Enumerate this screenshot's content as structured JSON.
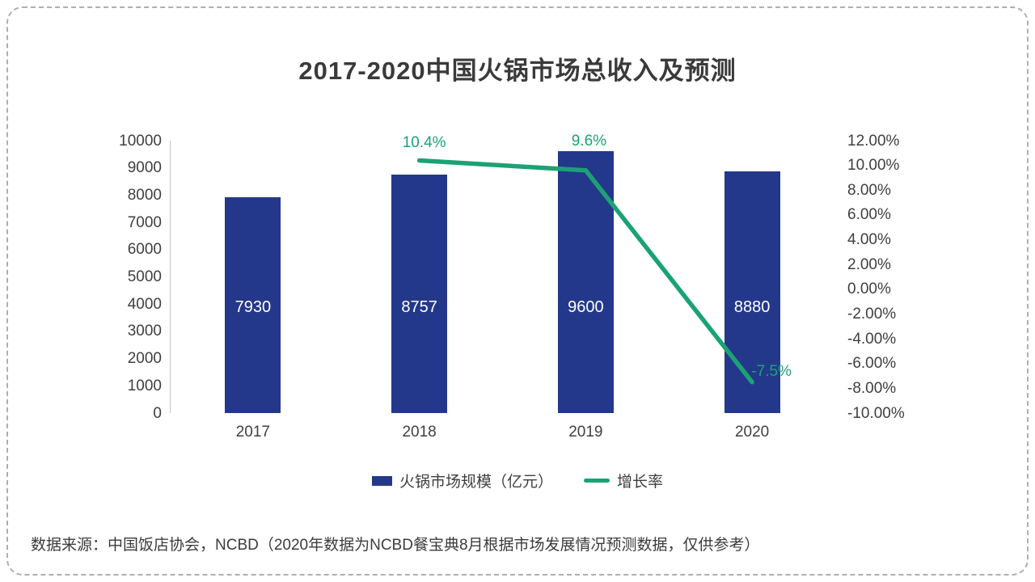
{
  "card": {
    "title": "2017-2020中国火锅市场总收入及预测",
    "source_note": "数据来源：中国饭店协会，NCBD（2020年数据为NCBD餐宝典8月根据市场发展情况预测数据，仅供参考）"
  },
  "colors": {
    "bar": "#24388B",
    "line": "#1BA274",
    "bar_value_text": "#FFFFFF",
    "axis_text": "#3F3F3F",
    "title_text": "#3A3A3A",
    "dashed_border": "#AFAFAF",
    "axis_line": "#C9C9C9"
  },
  "chart_data": {
    "type": "bar",
    "subtype": "bar+line combo, dual axis",
    "title": "2017-2020中国火锅市场总收入及预测",
    "categories": [
      "2017",
      "2018",
      "2019",
      "2020"
    ],
    "series": [
      {
        "name": "火锅市场规模（亿元）",
        "type": "bar",
        "axis": "left",
        "color": "#24388B",
        "values": [
          7930,
          8757,
          9600,
          8880
        ],
        "data_labels": [
          "7930",
          "8757",
          "9600",
          "8880"
        ]
      },
      {
        "name": "增长率",
        "type": "line",
        "axis": "right",
        "color": "#1BA274",
        "values": [
          null,
          10.4,
          9.6,
          -7.5
        ],
        "data_labels": [
          null,
          "10.4%",
          "9.6%",
          "-7.5%"
        ]
      }
    ],
    "left_axis": {
      "min": 0,
      "max": 10000,
      "step": 1000,
      "ticks": [
        "10000",
        "9000",
        "8000",
        "7000",
        "6000",
        "5000",
        "4000",
        "3000",
        "2000",
        "1000",
        "0"
      ]
    },
    "right_axis": {
      "min": -10,
      "max": 12,
      "step": 2,
      "ticks": [
        "12.00%",
        "10.00%",
        "8.00%",
        "6.00%",
        "4.00%",
        "2.00%",
        "0.00%",
        "-2.00%",
        "-4.00%",
        "-6.00%",
        "-8.00%",
        "-10.00%"
      ]
    },
    "grid": false,
    "legend_position": "bottom",
    "source_note": "数据来源：中国饭店协会，NCBD（2020年数据为NCBD餐宝典8月根据市场发展情况预测数据，仅供参考）"
  }
}
